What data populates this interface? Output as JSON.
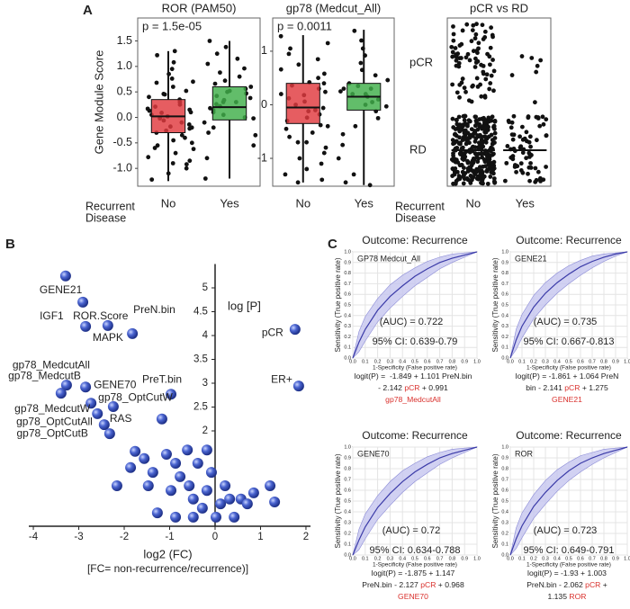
{
  "panels": [
    "A",
    "B",
    "C"
  ],
  "chart_data": [
    {
      "type": "box",
      "title": "ROR (PAM50)",
      "annotation": "p = 1.5e-05",
      "ylabel": "Gene Module Score",
      "xlabel": [
        "Recurrent",
        "Disease"
      ],
      "categories": [
        "No",
        "Yes"
      ],
      "colors": [
        "#e0393e",
        "#3fae49"
      ],
      "ylim": [
        -1.35,
        1.95
      ],
      "yticks": [
        {
          "value": -1,
          "label": "-1.0"
        },
        -0.5,
        {
          "value": 0,
          "label": "0.0"
        },
        0.5,
        {
          "value": 1,
          "label": "1.0"
        },
        1.5
      ],
      "boxes": [
        {
          "low": -1.25,
          "q1": -0.3,
          "median": 0.02,
          "q3": 0.35,
          "high": 1.3
        },
        {
          "low": -1.2,
          "q1": -0.05,
          "median": 0.2,
          "q3": 0.6,
          "high": 1.5
        }
      ],
      "values": [
        [
          -1.22,
          -1.1,
          -1.0,
          -0.92,
          -0.85,
          -0.78,
          -0.7,
          -0.62,
          -0.55,
          -0.5,
          -0.45,
          -0.4,
          -0.35,
          -0.3,
          -0.26,
          -0.22,
          -0.18,
          -0.14,
          -0.1,
          -0.06,
          -0.02,
          0.02,
          0.05,
          0.09,
          0.13,
          0.17,
          0.21,
          0.25,
          0.3,
          0.35,
          0.4,
          0.46,
          0.52,
          0.6,
          0.68,
          0.76,
          0.85,
          0.95,
          1.08,
          1.22,
          1.3,
          -0.9,
          -0.6,
          0.1,
          -0.2,
          0.15,
          0.45,
          0.7
        ],
        [
          -1.2,
          -0.8,
          -0.55,
          -0.35,
          -0.2,
          -0.1,
          -0.02,
          0.05,
          0.1,
          0.14,
          0.18,
          0.22,
          0.26,
          0.3,
          0.34,
          0.38,
          0.42,
          0.47,
          0.52,
          0.56,
          0.6,
          0.66,
          0.72,
          0.8,
          0.88,
          0.96,
          1.05,
          1.15,
          1.25,
          1.38,
          1.5,
          0.0,
          0.3,
          0.5,
          -0.3
        ]
      ]
    },
    {
      "type": "box",
      "title": "gp78 (Medcut_All)",
      "annotation": "p = 0.0011",
      "categories": [
        "No",
        "Yes"
      ],
      "colors": [
        "#e0393e",
        "#3fae49"
      ],
      "ylim": [
        -1.52,
        1.62
      ],
      "yticks": [
        -1,
        0,
        1
      ],
      "boxes": [
        {
          "low": -1.45,
          "q1": -0.35,
          "median": -0.05,
          "q3": 0.4,
          "high": 1.3
        },
        {
          "low": -1.5,
          "q1": -0.1,
          "median": 0.15,
          "q3": 0.4,
          "high": 1.4
        }
      ],
      "values": [
        [
          -1.45,
          -1.4,
          -1.3,
          -1.2,
          -1.1,
          -1.0,
          -0.9,
          -0.8,
          -0.7,
          -0.6,
          -0.52,
          -0.45,
          -0.38,
          -0.3,
          -0.24,
          -0.18,
          -0.12,
          -0.06,
          0,
          0.06,
          0.12,
          0.18,
          0.24,
          0.3,
          0.36,
          0.42,
          0.5,
          0.58,
          0.66,
          0.75,
          0.85,
          0.95,
          1.05,
          1.15,
          1.28,
          -0.4,
          -0.1,
          0.2,
          -0.7,
          0.4
        ],
        [
          -1.5,
          -1.45,
          -1.3,
          -1.0,
          -0.75,
          -0.55,
          -0.4,
          -0.25,
          -0.12,
          -0.03,
          0.05,
          0.1,
          0.15,
          0.2,
          0.25,
          0.3,
          0.35,
          0.4,
          0.46,
          0.55,
          0.65,
          0.78,
          0.92,
          1.05,
          1.2,
          1.38,
          0.0,
          0.2,
          0.3
        ]
      ]
    },
    {
      "type": "strip",
      "title": "pCR vs RD",
      "xlabel": [
        "Recurrent",
        "Disease"
      ],
      "categories": [
        "No",
        "Yes"
      ],
      "y_categories": [
        "pCR",
        "RD"
      ],
      "counts": [
        [
          80,
          300
        ],
        [
          7,
          70
        ]
      ]
    },
    {
      "type": "scatter",
      "ylabel": "log [P]",
      "xlabel": [
        "log2 (FC)",
        "[FC= non-recurrence/recurrence)]"
      ],
      "color": "#3b55c4",
      "xlim": [
        -4.1,
        2.1
      ],
      "ylim": [
        0,
        5.5
      ],
      "xticks": [
        -4,
        -3,
        -2,
        -1,
        0,
        1,
        2
      ],
      "yticks": [
        2,
        2.5,
        3,
        3.5,
        4,
        4.5,
        5
      ],
      "labeled_points": [
        {
          "label": "GENE21",
          "x": -3.29,
          "y": 5.25,
          "color": "#d9302c"
        },
        {
          "label": "IGF1",
          "x": -2.91,
          "y": 4.7,
          "color": "#444444"
        },
        {
          "label": "ROR.Score",
          "x": -2.85,
          "y": 4.19,
          "color": "#d9302c"
        },
        {
          "label": "PreN.bin",
          "x": -1.82,
          "y": 4.04,
          "color": "#444444"
        },
        {
          "label": "MAPK",
          "x": -2.36,
          "y": 4.21,
          "color": "#444444"
        },
        {
          "label": "pCR",
          "x": 1.76,
          "y": 4.13,
          "color": "#444444"
        },
        {
          "label": "ER+",
          "x": 1.84,
          "y": 2.94,
          "color": "#444444"
        },
        {
          "label": "PreT.bin",
          "x": -0.97,
          "y": 2.77,
          "color": "#444444"
        },
        {
          "label": "gp78_MedcutAll",
          "x": -3.27,
          "y": 2.96,
          "color": "#444444"
        },
        {
          "label": "gp78_MedcutB",
          "x": -3.39,
          "y": 2.79,
          "color": "#444444"
        },
        {
          "label": "GENE70",
          "x": -2.85,
          "y": 2.92,
          "color": "#d9302c"
        },
        {
          "label": "gp78_OptCutW",
          "x": -2.73,
          "y": 2.58,
          "color": "#444444"
        },
        {
          "label": "gp78_MedcutW",
          "x": -2.59,
          "y": 2.36,
          "color": "#444444"
        },
        {
          "label": "RAS",
          "x": -2.24,
          "y": 2.51,
          "color": "#444444"
        },
        {
          "label": "gp78_OptCutAll",
          "x": -2.44,
          "y": 2.13,
          "color": "#444444"
        },
        {
          "label": "gp78_OptCutB",
          "x": -2.32,
          "y": 1.94,
          "color": "#444444"
        }
      ],
      "points": {
        "x": [
          -1.17,
          -1.76,
          -1.56,
          -1.86,
          -1.37,
          -1.47,
          -1.07,
          -0.87,
          -0.77,
          -0.97,
          -0.57,
          -0.48,
          -0.28,
          -0.18,
          -0.08,
          0.02,
          0.12,
          0.22,
          0.32,
          0.42,
          0.57,
          0.71,
          0.85,
          1.21,
          1.31,
          -0.48,
          -0.87,
          -1.27,
          -0.18,
          -0.38,
          -2.16,
          -0.61
        ],
        "y": [
          2.25,
          1.57,
          1.42,
          1.23,
          1.13,
          0.85,
          1.51,
          1.32,
          1.04,
          0.75,
          0.85,
          0.57,
          0.38,
          0.75,
          1.13,
          0.19,
          0.47,
          0.85,
          0.57,
          0.19,
          0.57,
          0.47,
          0.7,
          0.85,
          0.51,
          0.19,
          0.19,
          0.28,
          1.6,
          1.32,
          0.85,
          1.6
        ]
      }
    },
    {
      "type": "roc",
      "title": "Outcome: Recurrence",
      "legend": "GP78 Medcut_All",
      "legend_color": "#d9302c",
      "auc_text": "(AUC) = 0.722",
      "ci_text": "95% CI: 0.639-0.79",
      "ylabel": "Sensitivity (True positive rate)",
      "xlabel": "1-Specificity (False positive rate)",
      "color": "#3b3ba8",
      "band_color": "#c6c6ef",
      "xlim": [
        0,
        1
      ],
      "ylim": [
        0,
        1
      ],
      "xticks": [
        {
          "value": 0,
          "label": "0.0"
        },
        0.1,
        0.2,
        0.3,
        0.4,
        0.5,
        0.6,
        0.7,
        0.8,
        0.9,
        {
          "value": 1,
          "label": "1.0"
        }
      ],
      "yticks": [
        {
          "value": 0,
          "label": "0.0"
        },
        0.1,
        0.2,
        0.3,
        0.4,
        0.5,
        0.6,
        0.7,
        0.8,
        0.9,
        {
          "value": 1,
          "label": "1.0"
        }
      ],
      "x": [
        0,
        0.05,
        0.1,
        0.2,
        0.3,
        0.4,
        0.5,
        0.6,
        0.7,
        0.8,
        0.9,
        1
      ],
      "y": [
        0,
        0.15,
        0.27,
        0.45,
        0.58,
        0.68,
        0.77,
        0.84,
        0.9,
        0.94,
        0.97,
        1
      ],
      "ci_lower": [
        0,
        0.06,
        0.16,
        0.34,
        0.47,
        0.58,
        0.68,
        0.76,
        0.84,
        0.9,
        0.95,
        1
      ],
      "ci_upper": [
        0,
        0.25,
        0.39,
        0.56,
        0.69,
        0.78,
        0.85,
        0.91,
        0.95,
        0.98,
        0.99,
        1
      ],
      "formula": [
        [
          {
            "text": "logit(P) =  -1.849 + 1.101 PreN.bin"
          }
        ],
        [
          {
            "text": "- 2.142 "
          },
          {
            "text": "pCR",
            "color": "#d9302c"
          },
          {
            "text": " + 0.991"
          }
        ],
        [
          {
            "text": "gp78_MedcutAll",
            "color": "#d9302c"
          }
        ]
      ]
    },
    {
      "type": "roc",
      "title": "Outcome: Recurrence",
      "legend": "GENE21",
      "legend_color": "#d9302c",
      "auc_text": "(AUC) = 0.735",
      "ci_text": "95% CI: 0.667-0.813",
      "ylabel": "Sensitivity (True positive rate)",
      "xlabel": "1-Specificity (False positive rate)",
      "color": "#3b3ba8",
      "band_color": "#c6c6ef",
      "xlim": [
        0,
        1
      ],
      "ylim": [
        0,
        1
      ],
      "xticks": [
        {
          "value": 0,
          "label": "0.0"
        },
        0.1,
        0.2,
        0.3,
        0.4,
        0.5,
        0.6,
        0.7,
        0.8,
        0.9,
        {
          "value": 1,
          "label": "1.0"
        }
      ],
      "yticks": [
        {
          "value": 0,
          "label": "0.0"
        },
        0.1,
        0.2,
        0.3,
        0.4,
        0.5,
        0.6,
        0.7,
        0.8,
        0.9,
        {
          "value": 1,
          "label": "1.0"
        }
      ],
      "x": [
        0,
        0.05,
        0.1,
        0.2,
        0.3,
        0.4,
        0.5,
        0.6,
        0.7,
        0.8,
        0.9,
        1
      ],
      "y": [
        0,
        0.17,
        0.3,
        0.48,
        0.61,
        0.71,
        0.79,
        0.86,
        0.91,
        0.95,
        0.98,
        1
      ],
      "ci_lower": [
        0,
        0.08,
        0.19,
        0.37,
        0.5,
        0.61,
        0.7,
        0.78,
        0.85,
        0.91,
        0.96,
        1
      ],
      "ci_upper": [
        0,
        0.27,
        0.41,
        0.59,
        0.71,
        0.8,
        0.87,
        0.92,
        0.96,
        0.98,
        0.99,
        1
      ],
      "formula": [
        [
          {
            "text": "logit(P) = -1.861 + 1.064 PreN"
          }
        ],
        [
          {
            "text": "bin - 2.141 "
          },
          {
            "text": "pCR",
            "color": "#d9302c"
          },
          {
            "text": " + 1.275"
          }
        ],
        [
          {
            "text": "GENE21",
            "color": "#d9302c"
          }
        ]
      ]
    },
    {
      "type": "roc",
      "title": "Outcome: Recurrence",
      "legend": "GENE70",
      "legend_color": "#d9302c",
      "auc_text": "(AUC) = 0.72",
      "ci_text": "95% CI: 0.634-0.788",
      "ylabel": "Sensitivity (True positive rate)",
      "xlabel": "1-Specificity (False positive rate)",
      "color": "#3b3ba8",
      "band_color": "#c6c6ef",
      "xlim": [
        0,
        1
      ],
      "ylim": [
        0,
        1
      ],
      "xticks": [
        {
          "value": 0,
          "label": "0.0"
        },
        0.1,
        0.2,
        0.3,
        0.4,
        0.5,
        0.6,
        0.7,
        0.8,
        0.9,
        {
          "value": 1,
          "label": "1.0"
        }
      ],
      "yticks": [
        {
          "value": 0,
          "label": "0.0"
        },
        0.1,
        0.2,
        0.3,
        0.4,
        0.5,
        0.6,
        0.7,
        0.8,
        0.9,
        {
          "value": 1,
          "label": "1.0"
        }
      ],
      "x": [
        0,
        0.05,
        0.1,
        0.2,
        0.3,
        0.4,
        0.5,
        0.6,
        0.7,
        0.8,
        0.9,
        1
      ],
      "y": [
        0,
        0.14,
        0.26,
        0.44,
        0.57,
        0.68,
        0.77,
        0.84,
        0.9,
        0.94,
        0.97,
        1
      ],
      "ci_lower": [
        0,
        0.05,
        0.15,
        0.33,
        0.46,
        0.58,
        0.68,
        0.76,
        0.84,
        0.9,
        0.95,
        1
      ],
      "ci_upper": [
        0,
        0.24,
        0.38,
        0.55,
        0.68,
        0.78,
        0.85,
        0.91,
        0.95,
        0.98,
        0.99,
        1
      ],
      "formula": [
        [
          {
            "text": "logit(P) = -1.875 + 1.147"
          }
        ],
        [
          {
            "text": "PreN.bin - 2.127 "
          },
          {
            "text": "pCR",
            "color": "#d9302c"
          },
          {
            "text": " + 0.968"
          }
        ],
        [
          {
            "text": "GENE70",
            "color": "#d9302c"
          }
        ]
      ]
    },
    {
      "type": "roc",
      "title": "Outcome: Recurrence",
      "legend": "ROR",
      "legend_color": "#d9302c",
      "auc_text": "(AUC) = 0.723",
      "ci_text": "95% CI: 0.649-0.791",
      "ylabel": "Sensitivity (True positive rate)",
      "xlabel": "1-Specificity (False positive rate)",
      "color": "#3b3ba8",
      "band_color": "#c6c6ef",
      "xlim": [
        0,
        1
      ],
      "ylim": [
        0,
        1
      ],
      "xticks": [
        {
          "value": 0,
          "label": "0.0"
        },
        0.1,
        0.2,
        0.3,
        0.4,
        0.5,
        0.6,
        0.7,
        0.8,
        0.9,
        {
          "value": 1,
          "label": "1.0"
        }
      ],
      "yticks": [
        {
          "value": 0,
          "label": "0.0"
        },
        0.1,
        0.2,
        0.3,
        0.4,
        0.5,
        0.6,
        0.7,
        0.8,
        0.9,
        {
          "value": 1,
          "label": "1.0"
        }
      ],
      "x": [
        0,
        0.05,
        0.1,
        0.2,
        0.3,
        0.4,
        0.5,
        0.6,
        0.7,
        0.8,
        0.9,
        1
      ],
      "y": [
        0,
        0.15,
        0.27,
        0.45,
        0.58,
        0.69,
        0.78,
        0.85,
        0.9,
        0.94,
        0.97,
        1
      ],
      "ci_lower": [
        0,
        0.06,
        0.16,
        0.34,
        0.47,
        0.59,
        0.69,
        0.77,
        0.84,
        0.9,
        0.95,
        1
      ],
      "ci_upper": [
        0,
        0.25,
        0.39,
        0.56,
        0.69,
        0.79,
        0.86,
        0.92,
        0.95,
        0.98,
        0.99,
        1
      ],
      "formula": [
        [
          {
            "text": "logit(P) = -1.93 + 1.003"
          }
        ],
        [
          {
            "text": "PreN.bin - 2.062 "
          },
          {
            "text": "pCR",
            "color": "#d9302c"
          },
          {
            "text": " +"
          }
        ],
        [
          {
            "text": "1.135 "
          },
          {
            "text": "ROR",
            "color": "#d9302c"
          }
        ]
      ]
    }
  ]
}
